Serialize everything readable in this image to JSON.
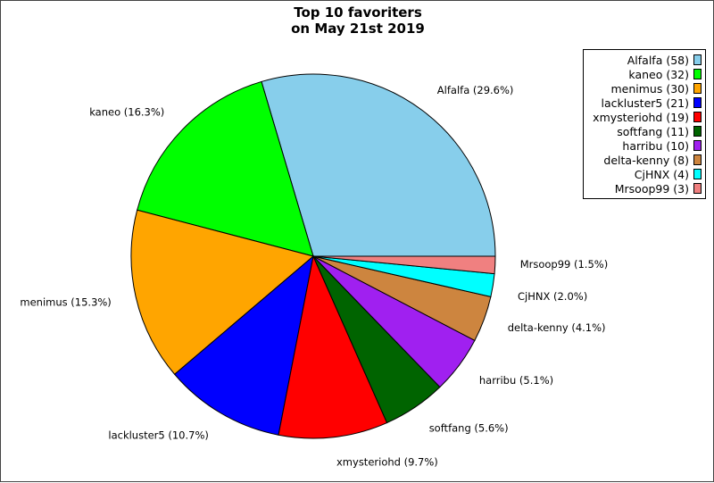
{
  "chart_data": {
    "type": "pie",
    "title_line1": "Top 10 favoriters",
    "title_line2": "on May 21st 2019",
    "slices": [
      {
        "label": "Alfalfa",
        "value": 58,
        "pct": "29.6%",
        "color": "#87ceeb"
      },
      {
        "label": "kaneo",
        "value": 32,
        "pct": "16.3%",
        "color": "#00ff00"
      },
      {
        "label": "menimus",
        "value": 30,
        "pct": "15.3%",
        "color": "#ffa500"
      },
      {
        "label": "lackluster5",
        "value": 21,
        "pct": "10.7%",
        "color": "#0000ff"
      },
      {
        "label": "xmysteriohd",
        "value": 19,
        "pct": "9.7%",
        "color": "#ff0000"
      },
      {
        "label": "softfang",
        "value": 11,
        "pct": "5.6%",
        "color": "#006400"
      },
      {
        "label": "harribu",
        "value": 10,
        "pct": "5.1%",
        "color": "#a020f0"
      },
      {
        "label": "delta-kenny",
        "value": 8,
        "pct": "4.1%",
        "color": "#cd853f"
      },
      {
        "label": "CjHNX",
        "value": 4,
        "pct": "2.0%",
        "color": "#00ffff"
      },
      {
        "label": "Mrsoop99",
        "value": 3,
        "pct": "1.5%",
        "color": "#f08080"
      }
    ],
    "legend": {
      "placement": "top-right"
    }
  }
}
